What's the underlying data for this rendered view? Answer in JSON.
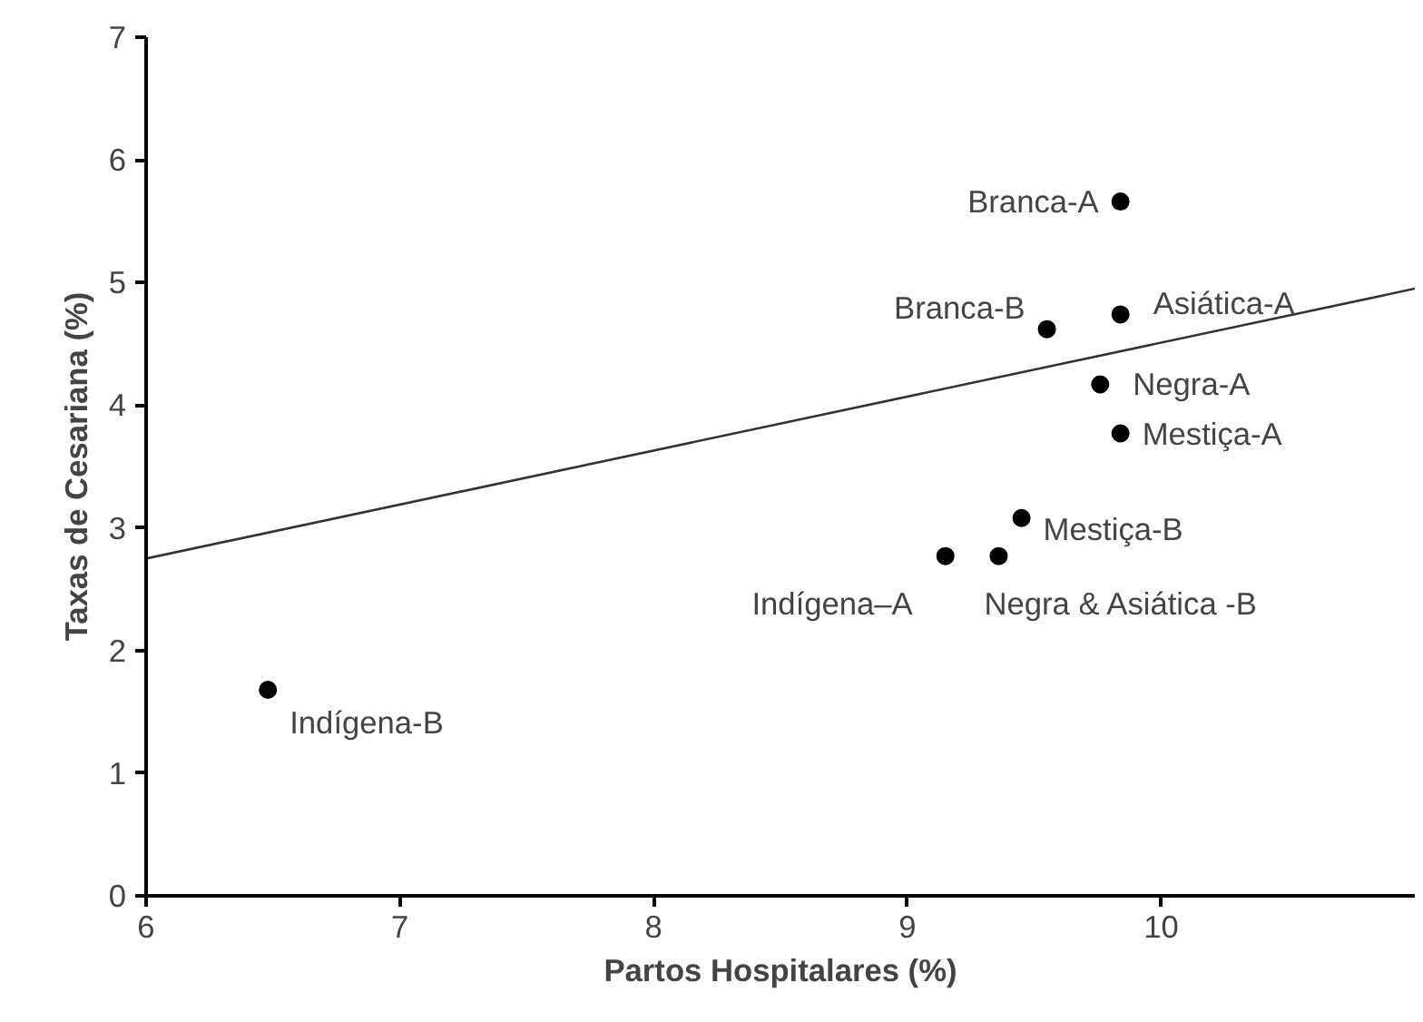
{
  "chart_data": {
    "type": "scatter",
    "xlabel": "Partos Hospitalares (%)",
    "ylabel": "Taxas de Cesariana (%)",
    "xlim": [
      6,
      11
    ],
    "ylim": [
      0,
      7
    ],
    "xticks": [
      6,
      7,
      8,
      9,
      10
    ],
    "yticks": [
      0,
      1,
      2,
      3,
      4,
      5,
      6,
      7
    ],
    "grid": false,
    "series": [
      {
        "marker": "circle",
        "color": "#000000",
        "x": [
          9.84,
          9.55,
          9.84,
          9.76,
          9.84,
          9.45,
          9.15,
          9.36,
          6.48
        ],
        "values": [
          5.66,
          4.62,
          4.74,
          4.17,
          3.77,
          3.08,
          2.77,
          2.77,
          1.68
        ]
      },
      {
        "type": "line",
        "color": "#333333",
        "line_style": "solid",
        "x": [
          6,
          11
        ],
        "values": [
          2.75,
          4.95
        ]
      }
    ],
    "annotations": [
      {
        "text": "Branca-A",
        "x": 9.84,
        "y": 5.66
      },
      {
        "text": "Branca-B",
        "x": 9.55,
        "y": 4.62
      },
      {
        "text": "Asiática-A",
        "x": 9.84,
        "y": 4.74
      },
      {
        "text": "Negra-A",
        "x": 9.76,
        "y": 4.17
      },
      {
        "text": "Mestiça-A",
        "x": 9.84,
        "y": 3.77
      },
      {
        "text": "Mestiça-B",
        "x": 9.45,
        "y": 3.08
      },
      {
        "text": "Indígena–A",
        "x": 9.15,
        "y": 2.77
      },
      {
        "text": "Negra & Asiática -B",
        "x": 9.36,
        "y": 2.77
      },
      {
        "text": "Indígena-B",
        "x": 6.48,
        "y": 1.68
      }
    ]
  }
}
